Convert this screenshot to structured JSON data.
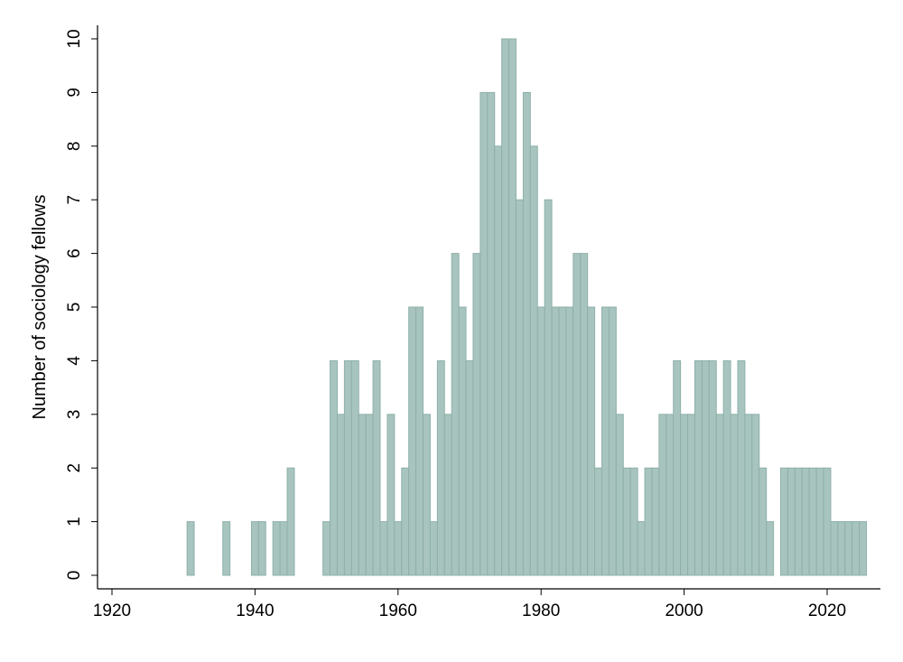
{
  "chart_data": {
    "type": "bar",
    "title": "",
    "xlabel": "",
    "ylabel": "Number of sociology fellows",
    "xlim": [
      1920,
      2026
    ],
    "ylim": [
      0,
      10
    ],
    "xticks": [
      1920,
      1940,
      1960,
      1980,
      2000,
      2020
    ],
    "yticks": [
      0,
      1,
      2,
      3,
      4,
      5,
      6,
      7,
      8,
      9,
      10
    ],
    "grid": false,
    "bar_color": "#a8c4bf",
    "bar_edge_color": "#8fb0aa",
    "x": [
      1931,
      1936,
      1940,
      1941,
      1943,
      1944,
      1945,
      1950,
      1951,
      1952,
      1953,
      1954,
      1955,
      1956,
      1957,
      1958,
      1959,
      1960,
      1961,
      1962,
      1963,
      1964,
      1965,
      1966,
      1967,
      1968,
      1969,
      1970,
      1971,
      1972,
      1973,
      1974,
      1975,
      1976,
      1977,
      1978,
      1979,
      1980,
      1981,
      1982,
      1983,
      1984,
      1985,
      1986,
      1987,
      1988,
      1989,
      1990,
      1991,
      1992,
      1993,
      1994,
      1995,
      1996,
      1997,
      1998,
      1999,
      2000,
      2001,
      2002,
      2003,
      2004,
      2005,
      2006,
      2007,
      2008,
      2009,
      2010,
      2011,
      2012,
      2014,
      2015,
      2016,
      2017,
      2018,
      2019,
      2020,
      2021,
      2022,
      2023,
      2024,
      2025
    ],
    "values": [
      1,
      1,
      1,
      1,
      1,
      1,
      2,
      1,
      4,
      3,
      4,
      4,
      3,
      3,
      4,
      1,
      3,
      1,
      2,
      5,
      5,
      3,
      1,
      4,
      3,
      6,
      5,
      4,
      6,
      9,
      9,
      8,
      10,
      10,
      7,
      9,
      8,
      5,
      7,
      5,
      5,
      5,
      6,
      6,
      5,
      2,
      5,
      5,
      3,
      2,
      2,
      1,
      2,
      2,
      3,
      3,
      4,
      3,
      3,
      4,
      4,
      4,
      3,
      4,
      3,
      4,
      3,
      3,
      2,
      1,
      2,
      2,
      2,
      2,
      2,
      2,
      2,
      1,
      1,
      1,
      1,
      1
    ]
  }
}
